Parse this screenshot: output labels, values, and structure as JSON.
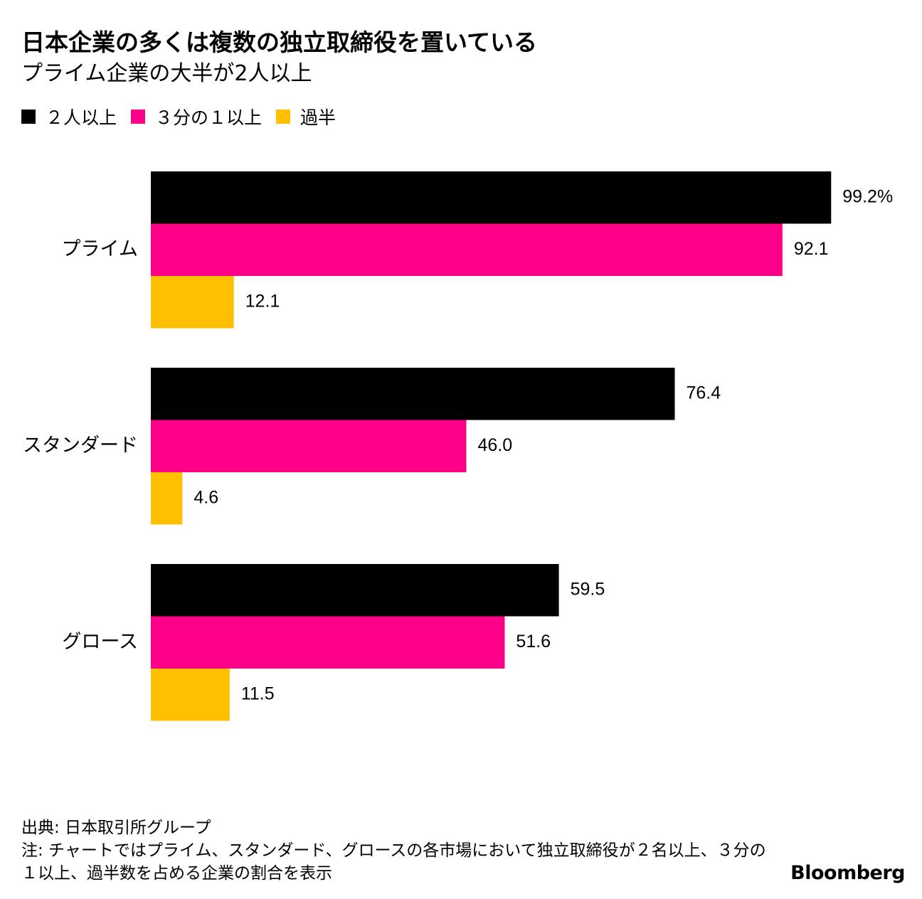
{
  "header": {
    "title": "日本企業の多くは複数の独立取締役を置いている",
    "subtitle": "プライム企業の大半が2人以上"
  },
  "legend": [
    {
      "label": "２人以上",
      "color": "#000000"
    },
    {
      "label": "３分の１以上",
      "color": "#ff0088"
    },
    {
      "label": "過半",
      "color": "#ffc000"
    }
  ],
  "chart_data": {
    "type": "bar",
    "orientation": "horizontal",
    "categories": [
      "プライム",
      "スタンダード",
      "グロース"
    ],
    "series": [
      {
        "name": "２人以上",
        "color": "#000000",
        "values": [
          99.2,
          76.4,
          59.5
        ],
        "labels": [
          "99.2%",
          "76.4",
          "59.5"
        ]
      },
      {
        "name": "３分の１以上",
        "color": "#ff0088",
        "values": [
          92.1,
          46.0,
          51.6
        ],
        "labels": [
          "92.1",
          "46.0",
          "51.6"
        ]
      },
      {
        "name": "過半",
        "color": "#ffc000",
        "values": [
          12.1,
          4.6,
          11.5
        ],
        "labels": [
          "12.1",
          "4.6",
          "11.5"
        ]
      }
    ],
    "xlim": [
      0,
      100
    ],
    "grid": false,
    "legend_position": "top-left"
  },
  "footer": {
    "source": "出典: 日本取引所グループ",
    "note": "注: チャートではプライム、スタンダード、グロースの各市場において独立取締役が２名以上、３分の１以上、過半数を占める企業の割合を表示",
    "logo": "Bloomberg"
  }
}
